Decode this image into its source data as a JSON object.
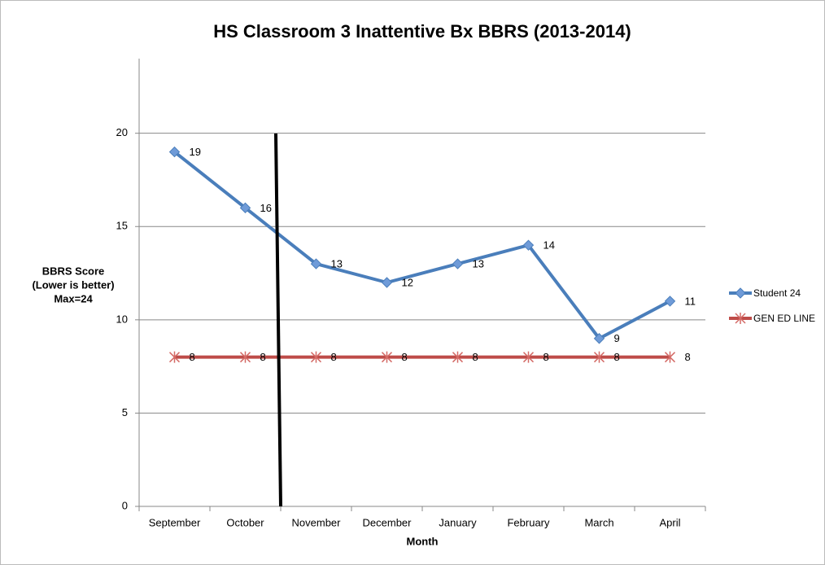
{
  "chart_data": {
    "type": "line",
    "title": "HS Classroom 3 Inattentive Bx BBRS (2013-2014)",
    "xlabel": "Month",
    "ylabel": [
      "BBRS Score",
      "(Lower is better)",
      "Max=24"
    ],
    "categories": [
      "September",
      "October",
      "November",
      "December",
      "January",
      "February",
      "March",
      "April"
    ],
    "series": [
      {
        "name": "Student 24",
        "color": "#4a7ebb",
        "marker": "diamond",
        "values": [
          19,
          16,
          13,
          12,
          13,
          14,
          9,
          11
        ]
      },
      {
        "name": "GEN ED LINE",
        "color": "#be4b48",
        "marker": "star",
        "values": [
          8,
          8,
          8,
          8,
          8,
          8,
          8,
          8
        ]
      }
    ],
    "ylim": [
      0,
      24
    ],
    "yticks": [
      0,
      5,
      10,
      15,
      20
    ],
    "grid": true,
    "legend": "right",
    "data_labels": true
  }
}
